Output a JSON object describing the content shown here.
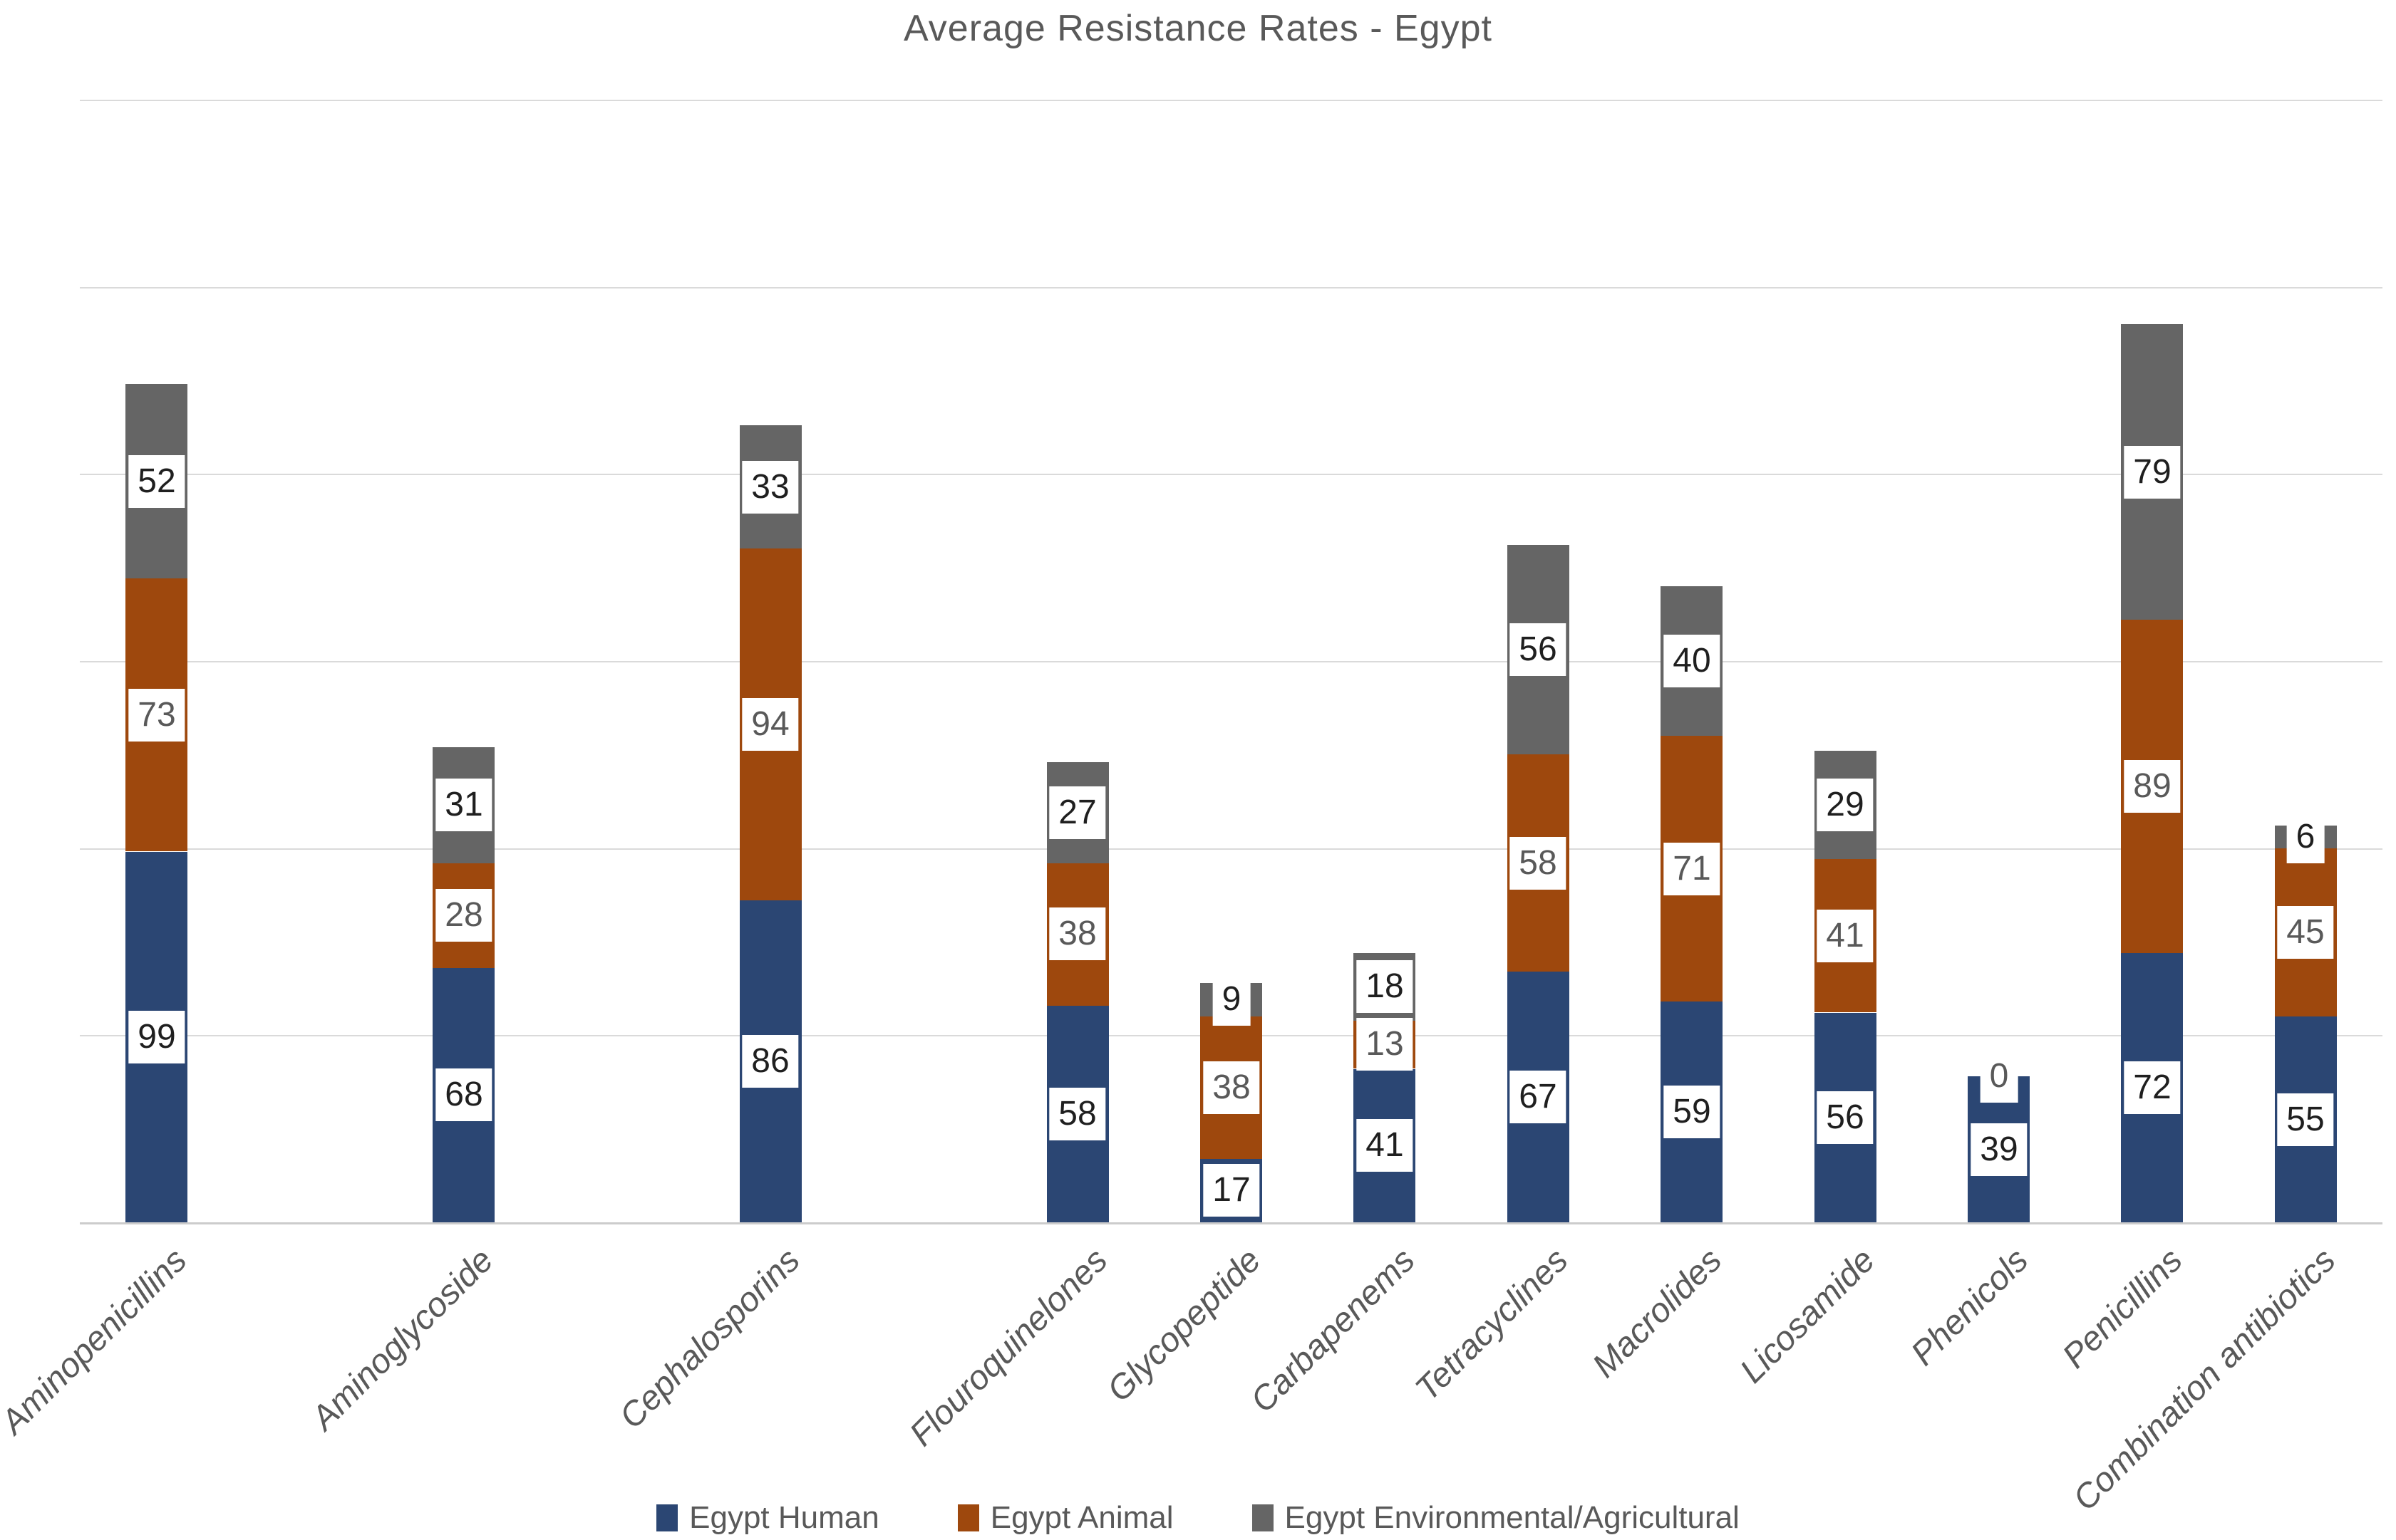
{
  "title": "Average Resistance Rates - Egypt",
  "chart_data": {
    "type": "bar",
    "stacked": true,
    "title": "Average Resistance Rates - Egypt",
    "categories": [
      "Aminopenicillins",
      "Aminoglycoside",
      "Cephalosporins",
      "Flouroquinelones",
      "Glycopeptide",
      "Carbapenems",
      "Tetracyclines",
      "Macrolides",
      "Licosamide",
      "Phenicols",
      "Penicillins",
      "Combination antibiotics"
    ],
    "series": [
      {
        "name": "Egypt Human",
        "color": "#2B4673",
        "values": [
          99,
          68,
          86,
          58,
          17,
          41,
          67,
          59,
          56,
          39,
          72,
          55
        ]
      },
      {
        "name": "Egypt Animal",
        "color": "#9E480D",
        "values": [
          73,
          28,
          94,
          38,
          38,
          13,
          58,
          71,
          41,
          0,
          89,
          45
        ]
      },
      {
        "name": "Egypt Environmental/Agricultural",
        "color": "#656565",
        "values": [
          52,
          31,
          33,
          27,
          9,
          18,
          56,
          40,
          29,
          null,
          79,
          6
        ]
      }
    ],
    "xlabel": "",
    "ylabel": "",
    "ylim": [
      0,
      300
    ],
    "gridline_interval": 50,
    "grid": true,
    "y_axis_labels_visible": false,
    "data_labels": true,
    "legend_position": "bottom",
    "layout": {
      "total_slots": 15,
      "category_slots": [
        0,
        2,
        4,
        6,
        7,
        8,
        9,
        10,
        11,
        12,
        13,
        14
      ]
    }
  }
}
